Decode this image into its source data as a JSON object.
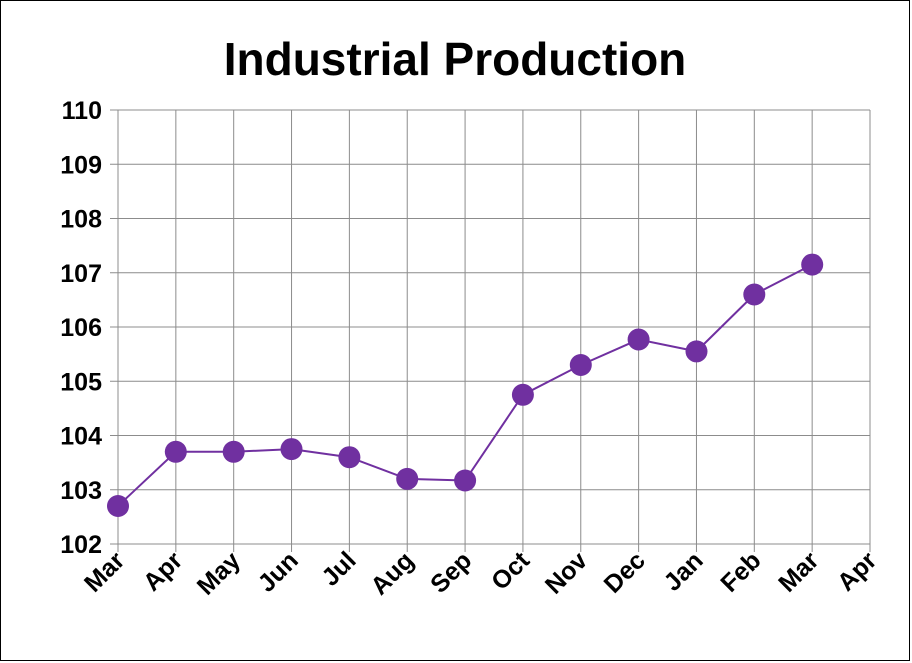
{
  "chart_data": {
    "type": "line",
    "title": "Industrial Production",
    "xlabel": "",
    "ylabel": "",
    "categories": [
      "Mar",
      "Apr",
      "May",
      "Jun",
      "Jul",
      "Aug",
      "Sep",
      "Oct",
      "Nov",
      "Dec",
      "Jan",
      "Feb",
      "Mar",
      "Apr"
    ],
    "series": [
      {
        "values": [
          102.7,
          103.7,
          103.7,
          103.75,
          103.6,
          103.2,
          103.17,
          104.75,
          105.3,
          105.77,
          105.55,
          106.6,
          107.15,
          null
        ],
        "color": "#7030a0"
      }
    ],
    "ylim": [
      102,
      110
    ],
    "yticks": [
      "102",
      "103",
      "104",
      "105",
      "106",
      "107",
      "108",
      "109",
      "110"
    ],
    "grid": true,
    "legend": "none"
  }
}
